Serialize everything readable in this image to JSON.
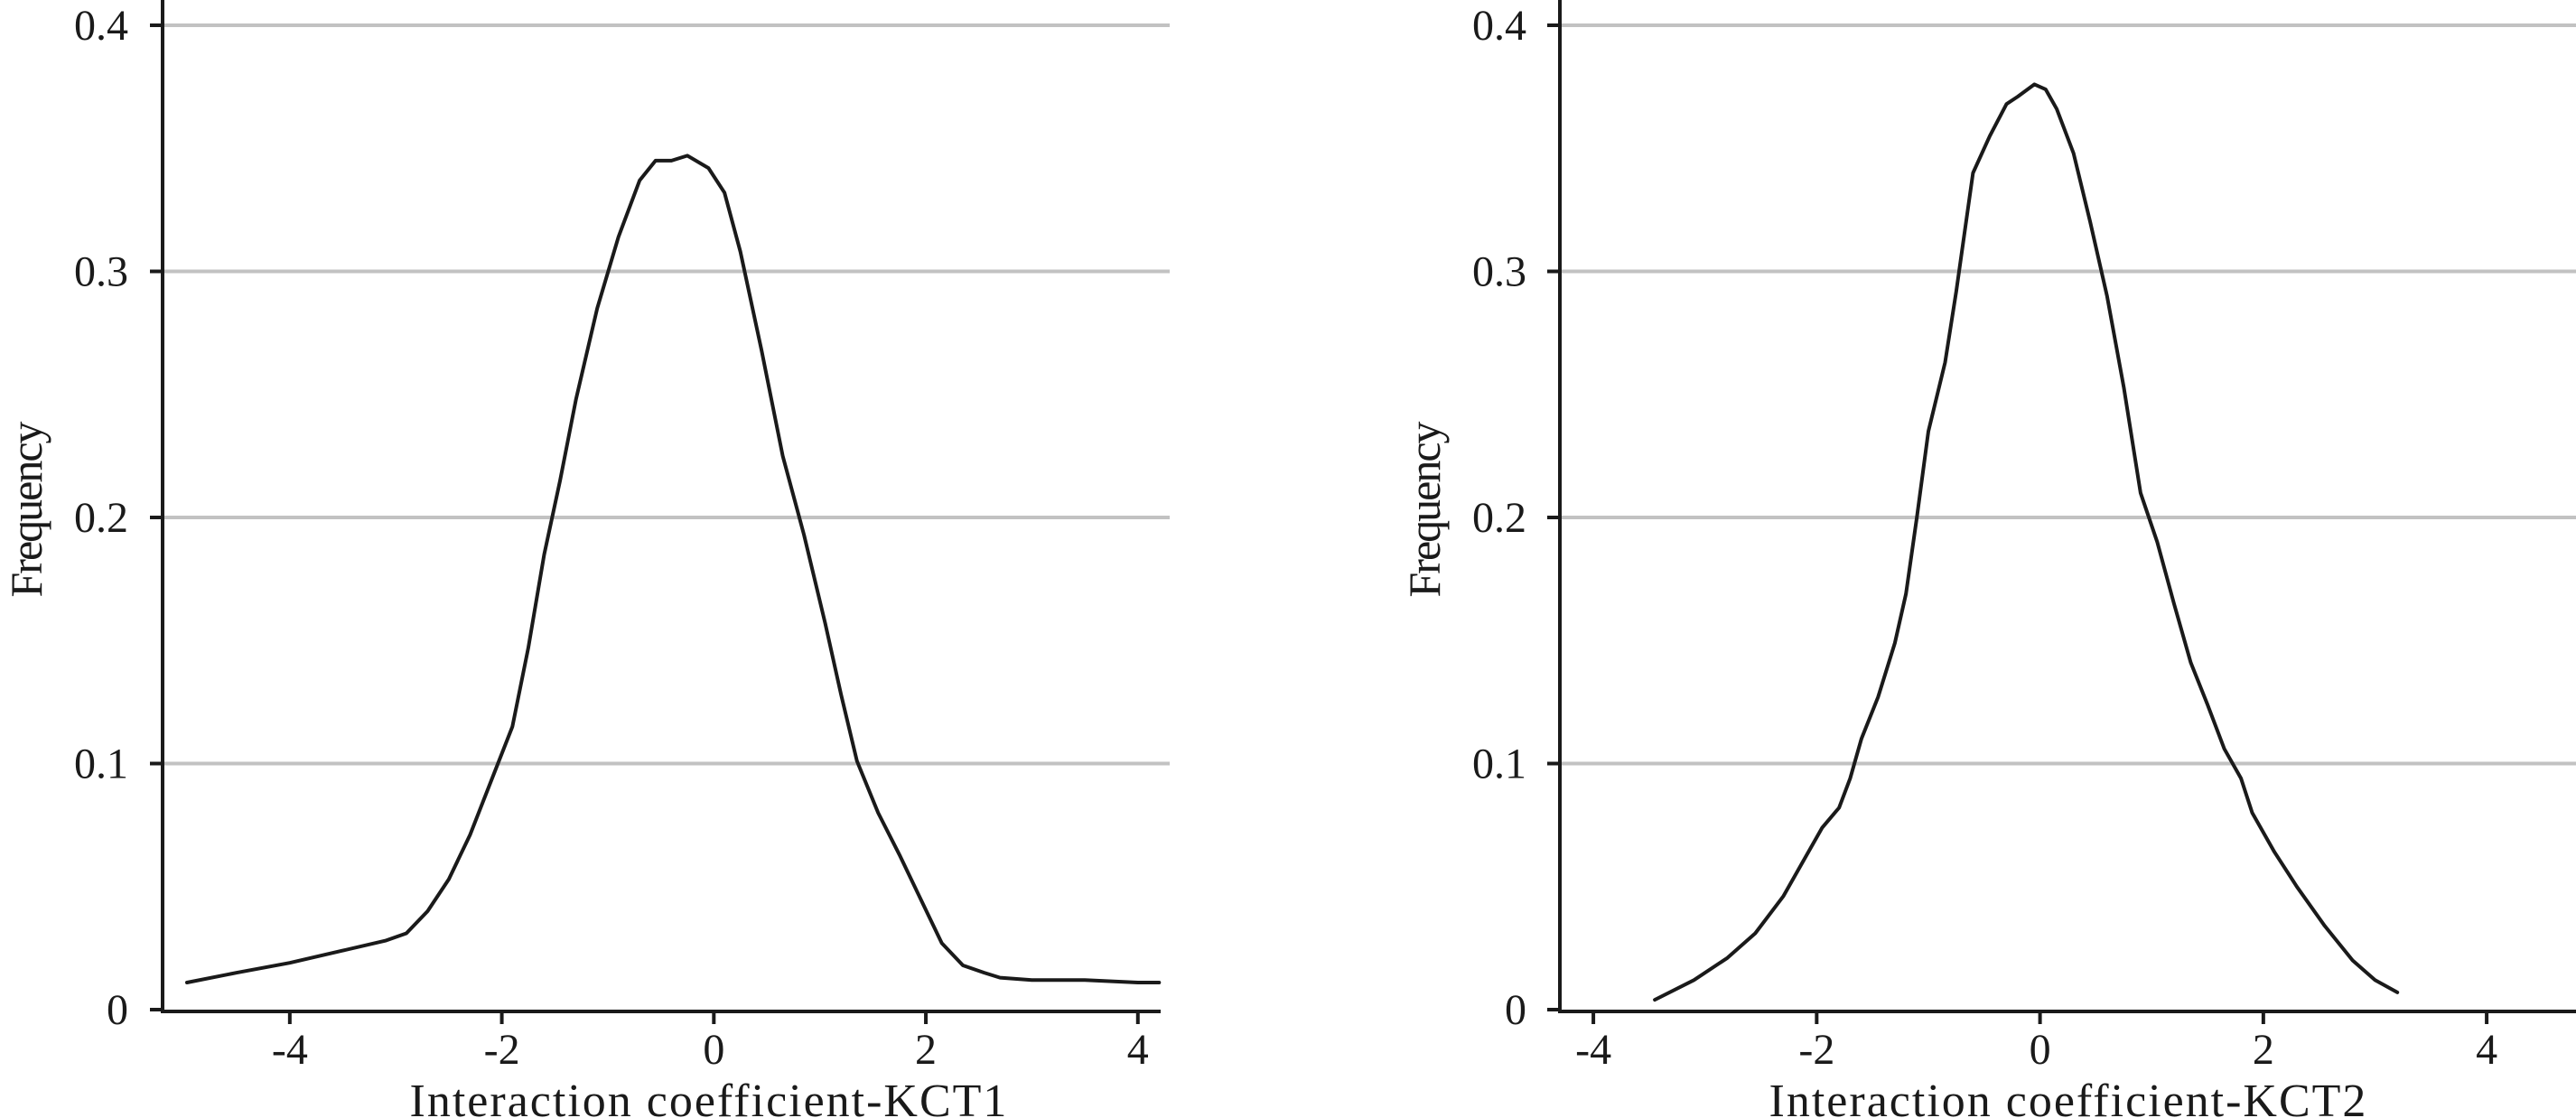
{
  "chart_data": [
    {
      "type": "line",
      "xlabel": "Interaction coefficient-KCT1",
      "ylabel": "Frequency",
      "xlim": [
        -5.2,
        4.3
      ],
      "ylim": [
        0,
        0.4
      ],
      "xticks": [
        -4,
        -2,
        0,
        2,
        4
      ],
      "xtick_labels": [
        "-4",
        "-2",
        "0",
        "2",
        "4"
      ],
      "yticks": [
        0,
        0.1,
        0.2,
        0.3,
        0.4
      ],
      "ytick_labels": [
        "0",
        "0.1",
        "0.2",
        "0.3",
        "0.4"
      ],
      "grid": "horizontal",
      "series": [
        {
          "x": [
            -4.97,
            -4.5,
            -4,
            -3.5,
            -3.1,
            -2.9,
            -2.7,
            -2.5,
            -2.3,
            -2.1,
            -1.9,
            -1.75,
            -1.6,
            -1.45,
            -1.3,
            -1.1,
            -0.9,
            -0.7,
            -0.55,
            -0.4,
            -0.25,
            -0.05,
            0.1,
            0.25,
            0.45,
            0.65,
            0.85,
            1.05,
            1.2,
            1.35,
            1.55,
            1.75,
            1.95,
            2.15,
            2.35,
            2.55,
            2.7,
            3.0,
            3.5,
            4.0,
            4.2
          ],
          "y": [
            0.011,
            0.015,
            0.019,
            0.024,
            0.028,
            0.031,
            0.04,
            0.053,
            0.071,
            0.093,
            0.115,
            0.147,
            0.185,
            0.215,
            0.248,
            0.285,
            0.314,
            0.337,
            0.345,
            0.345,
            0.347,
            0.342,
            0.332,
            0.308,
            0.268,
            0.225,
            0.193,
            0.157,
            0.128,
            0.101,
            0.08,
            0.063,
            0.045,
            0.027,
            0.018,
            0.015,
            0.013,
            0.012,
            0.012,
            0.011,
            0.011
          ]
        }
      ]
    },
    {
      "type": "line",
      "xlabel": "Interaction coefficient-KCT2",
      "ylabel": "Frequency",
      "xlim": [
        -4.3,
        4.8
      ],
      "ylim": [
        0,
        0.4
      ],
      "xticks": [
        -4,
        -2,
        0,
        2,
        4
      ],
      "xtick_labels": [
        "-4",
        "-2",
        "0",
        "2",
        "4"
      ],
      "yticks": [
        0,
        0.1,
        0.2,
        0.3,
        0.4
      ],
      "ytick_labels": [
        "0",
        "0.1",
        "0.2",
        "0.3",
        "0.4"
      ],
      "grid": "horizontal",
      "series": [
        {
          "x": [
            -3.45,
            -3.1,
            -2.8,
            -2.55,
            -2.3,
            -2.1,
            -1.95,
            -1.8,
            -1.7,
            -1.6,
            -1.45,
            -1.3,
            -1.2,
            -1.1,
            -1.0,
            -0.85,
            -0.75,
            -0.6,
            -0.45,
            -0.3,
            -0.2,
            -0.05,
            0.05,
            0.15,
            0.3,
            0.45,
            0.6,
            0.75,
            0.9,
            1.05,
            1.2,
            1.35,
            1.5,
            1.65,
            1.8,
            1.9,
            2.1,
            2.3,
            2.55,
            2.8,
            3.0,
            3.2
          ],
          "y": [
            0.004,
            0.012,
            0.021,
            0.031,
            0.046,
            0.062,
            0.074,
            0.082,
            0.094,
            0.11,
            0.127,
            0.149,
            0.169,
            0.201,
            0.235,
            0.263,
            0.292,
            0.34,
            0.355,
            0.368,
            0.371,
            0.376,
            0.374,
            0.366,
            0.348,
            0.32,
            0.29,
            0.253,
            0.21,
            0.19,
            0.165,
            0.141,
            0.124,
            0.106,
            0.094,
            0.08,
            0.064,
            0.05,
            0.034,
            0.02,
            0.012,
            0.007
          ]
        }
      ]
    }
  ]
}
